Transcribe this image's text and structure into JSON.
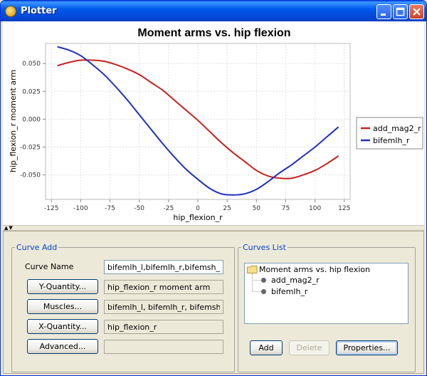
{
  "window": {
    "title": "Plotter",
    "icons": [
      "app-gear-icon",
      "minimize-icon",
      "maximize-icon",
      "close-icon"
    ]
  },
  "chart_data": {
    "type": "line",
    "title": "Moment arms vs. hip flexion",
    "xlabel": "hip_flexion_r",
    "ylabel": "hip_flexion_r moment arm",
    "xlim": [
      -130,
      130
    ],
    "ylim": [
      -0.072,
      0.068
    ],
    "x_ticks": [
      -125,
      -100,
      -75,
      -50,
      -25,
      0,
      25,
      50,
      75,
      100,
      125
    ],
    "y_ticks": [
      0.05,
      0.025,
      0.0,
      -0.025,
      -0.05
    ],
    "x_tick_labels": [
      "-125",
      "-100",
      "-75",
      "-50",
      "-25",
      "0",
      "25",
      "50",
      "75",
      "100",
      "125"
    ],
    "y_tick_labels": [
      "0.050",
      "0.025",
      "0.000",
      "-0.025",
      "-0.050"
    ],
    "grid": true,
    "legend_position": "right",
    "series": [
      {
        "name": "add_mag2_r",
        "color": "#c8201c",
        "x": [
          -120,
          -110,
          -100,
          -90,
          -80,
          -70,
          -60,
          -50,
          -40,
          -30,
          -20,
          -10,
          0,
          10,
          20,
          30,
          40,
          50,
          60,
          70,
          80,
          90,
          100,
          110,
          120
        ],
        "y": [
          0.048,
          0.051,
          0.053,
          0.053,
          0.052,
          0.049,
          0.045,
          0.04,
          0.033,
          0.026,
          0.017,
          0.008,
          -0.001,
          -0.011,
          -0.021,
          -0.03,
          -0.038,
          -0.046,
          -0.051,
          -0.053,
          -0.053,
          -0.05,
          -0.046,
          -0.04,
          -0.033
        ]
      },
      {
        "name": "bifemlh_r",
        "color": "#1e2fc8",
        "x": [
          -120,
          -110,
          -100,
          -90,
          -80,
          -70,
          -60,
          -50,
          -40,
          -30,
          -20,
          -10,
          0,
          10,
          20,
          30,
          40,
          50,
          60,
          70,
          80,
          90,
          100,
          110,
          120
        ],
        "y": [
          0.065,
          0.062,
          0.057,
          0.049,
          0.04,
          0.029,
          0.017,
          0.004,
          -0.009,
          -0.022,
          -0.034,
          -0.045,
          -0.054,
          -0.062,
          -0.067,
          -0.068,
          -0.067,
          -0.063,
          -0.056,
          -0.048,
          -0.041,
          -0.033,
          -0.025,
          -0.016,
          -0.007
        ]
      }
    ]
  },
  "curve_add": {
    "legend": "Curve Add",
    "curve_name_label": "Curve Name",
    "curve_name_value": "bifemlh_l,bifemlh_r,bifemsh_l",
    "y_quantity_button": "Y-Quantity...",
    "y_quantity_value": "hip_flexion_r moment arm",
    "muscles_button": "Muscles...",
    "muscles_value": "bifemlh_l, bifemlh_r, bifemsh_l",
    "x_quantity_button": "X-Quantity...",
    "x_quantity_value": "hip_flexion_r",
    "advanced_button": "Advanced...",
    "advanced_value": ""
  },
  "curves_list": {
    "legend": "Curves List",
    "root": "Moment arms vs. hip flexion",
    "items": [
      "add_mag2_r",
      "bifemlh_r"
    ],
    "add_button": "Add",
    "delete_button": "Delete",
    "properties_button": "Properties..."
  }
}
